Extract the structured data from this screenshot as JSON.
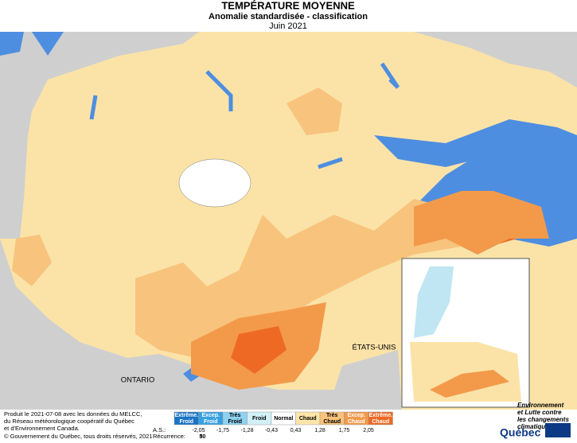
{
  "header": {
    "title": "TEMPÉRATURE MOYENNE",
    "subtitle": "Anomalie standardisée - classification",
    "date": "Juin 2021"
  },
  "map_labels": {
    "ontario": "ONTARIO",
    "usa": "ÉTATS-UNIS"
  },
  "legend": {
    "classes": [
      "Extrême. Froid",
      "Excep. Froid",
      "Très Froid",
      "Froid",
      "Normal",
      "Chaud",
      "Très Chaud",
      "Excep. Chaud",
      "Extrême. Chaud"
    ],
    "colors": [
      "#1b74c6",
      "#38a0e0",
      "#8ed2f0",
      "#d2f0f8",
      "#ffffff",
      "#fde4a8",
      "#f8c37c",
      "#f39a4a",
      "#ee6a24"
    ],
    "as_label": "A.S.:",
    "thresholds": [
      "-2,05",
      "-1,75",
      "-1,28",
      "-0,43",
      "0,43",
      "1,28",
      "1,75",
      "2,05"
    ],
    "recurrence_label": "Récurrence:",
    "recurrence": [
      "30",
      "5"
    ]
  },
  "credits": {
    "produced": "Produit le 2021-07-08 avec les données du MELCC,",
    "network": "du Réseau météorologique coopératif du Québec",
    "source": "et d'Environnement Canada.",
    "copyright": "© Gouvernement du Québec, tous droits réservés, 2021"
  },
  "logo": {
    "line1": "Environnement",
    "line2": "et Lutte contre",
    "line3": "les changements",
    "line4": "climatiques",
    "brand": "Québec"
  }
}
